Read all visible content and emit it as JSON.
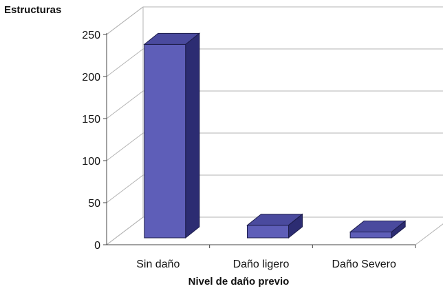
{
  "chart_data": {
    "type": "bar",
    "style": "3d-column",
    "categories": [
      "Sin daño",
      "Daño ligero",
      "Daño Severo"
    ],
    "values": [
      230,
      15,
      7
    ],
    "ylabel": "Estructuras",
    "xlabel": "Nivel de daño previo",
    "ylim": [
      0,
      250
    ],
    "yticks": [
      "0",
      "50",
      "100",
      "150",
      "200",
      "250"
    ],
    "grid": true,
    "colors": {
      "bar_front": "#5e5eb8",
      "bar_top": "#4a4a9e",
      "bar_side": "#2c2c72",
      "grid": "#b3b3b3",
      "text": "#111111"
    }
  }
}
